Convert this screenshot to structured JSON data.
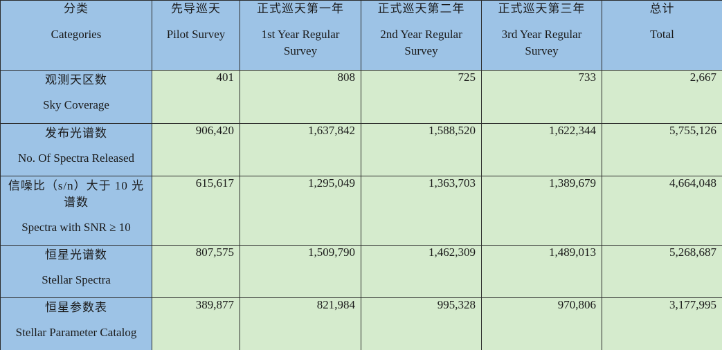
{
  "headers": [
    {
      "zh": "分类",
      "en": "Categories"
    },
    {
      "zh": "先导巡天",
      "en": "Pilot Survey"
    },
    {
      "zh": "正式巡天第一年",
      "en": "1st Year Regular Survey"
    },
    {
      "zh": "正式巡天第二年",
      "en": "2nd Year Regular Survey"
    },
    {
      "zh": "正式巡天第三年",
      "en": "3rd Year Regular Survey"
    },
    {
      "zh": "总计",
      "en": "Total"
    }
  ],
  "rows": [
    {
      "zh": "观测天区数",
      "en": "Sky Coverage",
      "values": [
        "401",
        "808",
        "725",
        "733",
        "2,667"
      ]
    },
    {
      "zh": "发布光谱数",
      "en": "No. Of Spectra Released",
      "values": [
        "906,420",
        "1,637,842",
        "1,588,520",
        "1,622,344",
        "5,755,126"
      ]
    },
    {
      "zh": "信噪比（s/n）大于 10 光谱数",
      "en": "Spectra with SNR ≥ 10",
      "values": [
        "615,617",
        "1,295,049",
        "1,363,703",
        "1,389,679",
        "4,664,048"
      ]
    },
    {
      "zh": "恒星光谱数",
      "en": "Stellar Spectra",
      "values": [
        "807,575",
        "1,509,790",
        "1,462,309",
        "1,489,013",
        "5,268,687"
      ]
    },
    {
      "zh": "恒星参数表",
      "en": "Stellar Parameter Catalog",
      "values": [
        "389,877",
        "821,984",
        "995,328",
        "970,806",
        "3,177,995"
      ]
    }
  ],
  "colors": {
    "header_bg": "#9dc3e6",
    "value_bg": "#d5ebcd",
    "border": "#2b2b2b"
  }
}
